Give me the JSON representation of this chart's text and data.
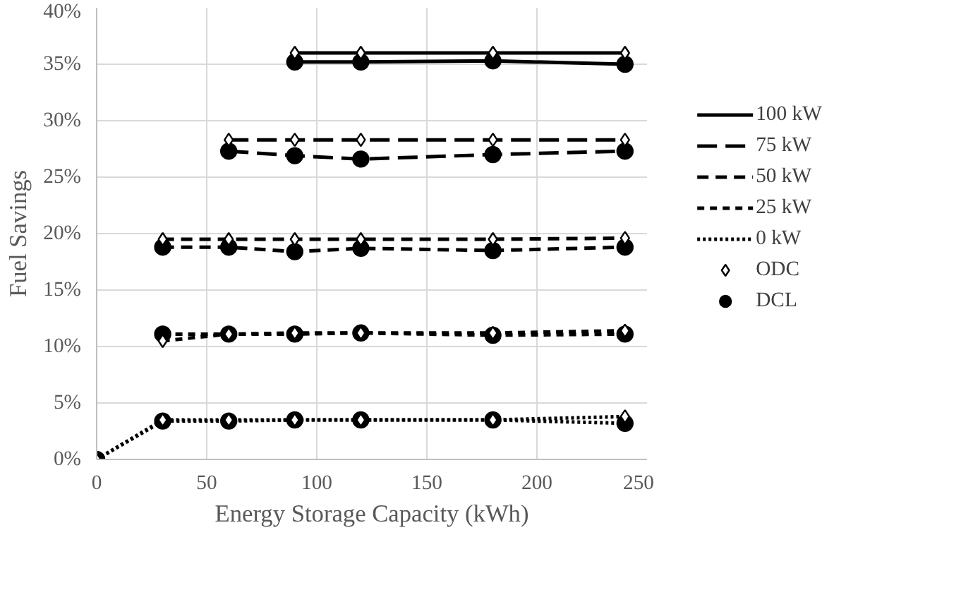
{
  "chart_data": {
    "type": "line",
    "xlabel": "Energy Storage Capacity (kWh)",
    "ylabel": "Fuel Savings",
    "xlim": [
      0,
      250
    ],
    "xticks": [
      0,
      50,
      100,
      150,
      200,
      250
    ],
    "ylim": [
      0,
      40
    ],
    "yticks": [
      {
        "value": 0,
        "label": "0%"
      },
      {
        "value": 5,
        "label": "5%"
      },
      {
        "value": 10,
        "label": "10%"
      },
      {
        "value": 15,
        "label": "15%"
      },
      {
        "value": 20,
        "label": "20%"
      },
      {
        "value": 25,
        "label": "25%"
      },
      {
        "value": 30,
        "label": "30%"
      },
      {
        "value": 35,
        "label": "35%"
      },
      {
        "value": 40,
        "label": "40%"
      }
    ],
    "grid": true,
    "legend": "right",
    "marker": "none",
    "series": [
      {
        "name": "100 kW",
        "type": "line",
        "line_style": "solid",
        "color": "#000000",
        "x": [
          90,
          120,
          180,
          240
        ],
        "values": [
          36.0,
          36.0,
          36.0,
          36.0
        ]
      },
      {
        "type": "line",
        "line_style": "solid",
        "color": "#000000",
        "x": [
          90,
          120,
          180,
          240
        ],
        "values": [
          35.2,
          35.2,
          35.3,
          35.0
        ]
      },
      {
        "name": "75 kW",
        "type": "line",
        "line_style": "long_dashed",
        "color": "#000000",
        "x": [
          60,
          90,
          120,
          180,
          240
        ],
        "values": [
          28.3,
          28.3,
          28.3,
          28.3,
          28.3
        ]
      },
      {
        "type": "line",
        "line_style": "long_dashed",
        "color": "#000000",
        "x": [
          60,
          90,
          120,
          180,
          240
        ],
        "values": [
          27.3,
          26.9,
          26.6,
          27.0,
          27.3
        ]
      },
      {
        "name": "50 kW",
        "type": "line",
        "line_style": "dashed",
        "color": "#000000",
        "x": [
          30,
          60,
          90,
          120,
          180,
          240
        ],
        "values": [
          19.5,
          19.5,
          19.5,
          19.5,
          19.5,
          19.6
        ]
      },
      {
        "type": "line",
        "line_style": "dashed",
        "color": "#000000",
        "x": [
          30,
          60,
          90,
          120,
          180,
          240
        ],
        "values": [
          18.8,
          18.8,
          18.4,
          18.7,
          18.5,
          18.8
        ]
      },
      {
        "name": "25 kW",
        "type": "line",
        "line_style": "short_dashed",
        "color": "#000000",
        "x": [
          30,
          60,
          90,
          120,
          180,
          240
        ],
        "values": [
          10.5,
          11.1,
          11.2,
          11.2,
          11.2,
          11.4
        ]
      },
      {
        "type": "line",
        "line_style": "short_dashed",
        "color": "#000000",
        "x": [
          30,
          60,
          90,
          120,
          180,
          240
        ],
        "values": [
          11.1,
          11.1,
          11.1,
          11.2,
          11.0,
          11.1
        ]
      },
      {
        "name": "0 kW",
        "type": "line",
        "line_style": "dotted",
        "color": "#000000",
        "x": [
          0,
          30,
          60,
          90,
          120,
          180,
          240
        ],
        "values": [
          0,
          3.5,
          3.5,
          3.5,
          3.5,
          3.5,
          3.8
        ]
      },
      {
        "type": "line",
        "line_style": "dotted",
        "color": "#000000",
        "x": [
          0,
          30,
          60,
          90,
          120,
          180,
          240
        ],
        "values": [
          0,
          3.4,
          3.4,
          3.5,
          3.5,
          3.5,
          3.2
        ]
      },
      {
        "name": "ODC",
        "type": "scatter",
        "marker": "diamond",
        "color": "#000000",
        "x": [
          90,
          120,
          180,
          240,
          60,
          90,
          120,
          180,
          240,
          30,
          60,
          90,
          120,
          180,
          240,
          30,
          60,
          90,
          120,
          180,
          240,
          0,
          30,
          60,
          90,
          120,
          180,
          240
        ],
        "values": [
          36.0,
          36.0,
          36.0,
          36.0,
          28.3,
          28.3,
          28.3,
          28.3,
          28.3,
          19.5,
          19.5,
          19.5,
          19.5,
          19.5,
          19.6,
          10.5,
          11.1,
          11.2,
          11.2,
          11.2,
          11.4,
          0,
          3.5,
          3.5,
          3.5,
          3.5,
          3.5,
          3.8
        ]
      },
      {
        "name": "DCL",
        "type": "scatter",
        "marker": "circle",
        "color": "#000000",
        "x": [
          90,
          120,
          180,
          240,
          60,
          90,
          120,
          180,
          240,
          30,
          60,
          90,
          120,
          180,
          240,
          30,
          60,
          90,
          120,
          180,
          240,
          0,
          30,
          60,
          90,
          120,
          180,
          240
        ],
        "values": [
          35.2,
          35.2,
          35.3,
          35.0,
          27.3,
          26.9,
          26.6,
          27.0,
          27.3,
          18.8,
          18.8,
          18.4,
          18.7,
          18.5,
          18.8,
          11.1,
          11.1,
          11.1,
          11.2,
          11.0,
          11.1,
          0,
          3.4,
          3.4,
          3.5,
          3.5,
          3.5,
          3.2
        ]
      }
    ]
  }
}
